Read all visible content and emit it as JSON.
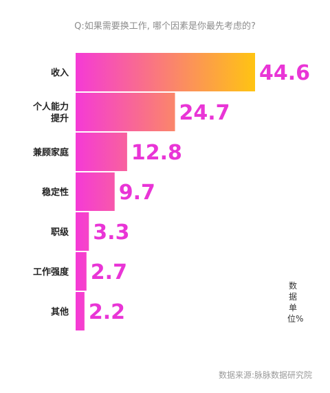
{
  "question": "Q:如果需要换工作, 哪个因素是你最先考虑的?",
  "unit_label": "数据单位%",
  "source": "数据来源:脉脉数据研究院",
  "colors": {
    "gradient_start": "#f53ad6",
    "gradient_end": "#ffc412",
    "value_text": "#e935d6",
    "label_text": "#222222"
  },
  "chart_data": {
    "type": "bar",
    "orientation": "horizontal",
    "categories": [
      "收入",
      "个人能力提升",
      "兼顾家庭",
      "稳定性",
      "职级",
      "工作强度",
      "其他"
    ],
    "category_lines": [
      [
        "收入"
      ],
      [
        "个人能力",
        "提升"
      ],
      [
        "兼顾家庭"
      ],
      [
        "稳定性"
      ],
      [
        "职级"
      ],
      [
        "工作强度"
      ],
      [
        "其他"
      ]
    ],
    "values": [
      44.6,
      24.7,
      12.8,
      9.7,
      3.3,
      2.7,
      2.2
    ],
    "value_labels": [
      "44.6",
      "24.7",
      "12.8",
      "9.7",
      "3.3",
      "2.7",
      "2.2"
    ],
    "xlim": [
      0,
      44.6
    ],
    "grid": false,
    "legend": "none",
    "title": "",
    "xlabel": "",
    "ylabel": ""
  }
}
